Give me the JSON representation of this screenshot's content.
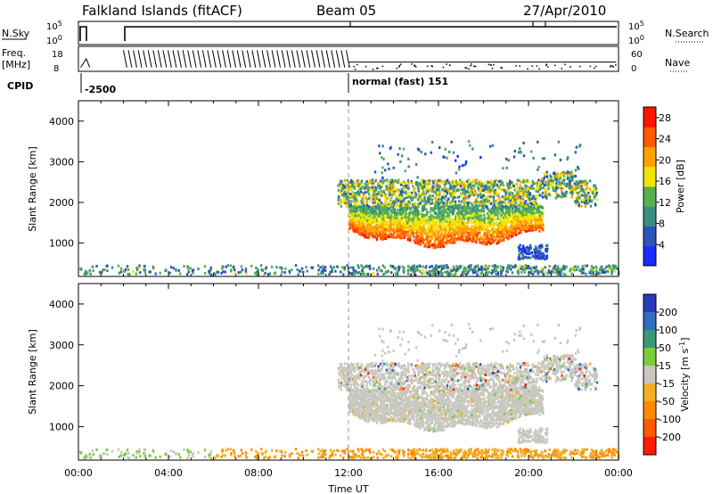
{
  "header": {
    "station": "Falkland Islands (fitACF)",
    "beam": "Beam 05",
    "date": "27/Apr/2010"
  },
  "summary": {
    "nsky_label": "N.Sky",
    "nsearch_label": "N.Search",
    "freq_label_1": "Freq.",
    "freq_label_2": "[MHz]",
    "nave_label": "Nave",
    "cpid_label": "CPID",
    "sky_ticks": [
      "10^5",
      "10^0"
    ],
    "search_ticks": [
      "10^5",
      "10^0"
    ],
    "freq_ticks": [
      "18",
      "8"
    ],
    "nave_ticks": [
      "60",
      "0"
    ],
    "cpid_segments": [
      {
        "start_hour": 0.25,
        "label": "-2500"
      },
      {
        "start_hour": 12.0,
        "label": "normal (fast) 151"
      }
    ]
  },
  "colors": {
    "power_scale": [
      "#1a2cff",
      "#2c55b8",
      "#3a8f7c",
      "#57b04f",
      "#f2e600",
      "#ffa000",
      "#ff5a00",
      "#ff1400"
    ],
    "velocity_scale": [
      "#2a3ab8",
      "#2e6fc0",
      "#3a9a78",
      "#7ccc3c",
      "#c8c8c0",
      "#f0b020",
      "#ff8a00",
      "#ff5a00",
      "#ff1a00"
    ],
    "dashed_line": "#999999"
  },
  "chart_data": [
    {
      "type": "heatmap",
      "title": "",
      "xlabel": "Time UT",
      "ylabel": "Slant Range [km]",
      "colorbar_label": "Power [dB]",
      "x_range_hours": [
        0,
        24
      ],
      "ylim": [
        180,
        4500
      ],
      "x_ticks": [
        "00:00",
        "04:00",
        "08:00",
        "12:00",
        "16:00",
        "20:00",
        "00:00"
      ],
      "y_ticks": [
        1000,
        2000,
        3000,
        4000
      ],
      "colorbar_ticks": [
        4,
        8,
        12,
        16,
        20,
        24,
        28
      ],
      "colorbar_range": [
        0,
        30
      ],
      "features": [
        {
          "name": "main echo band",
          "hours": [
            13.0,
            20.5
          ],
          "range_km": [
            1000,
            1900
          ],
          "power_db": 28
        },
        {
          "name": "upper patchy echoes",
          "hours": [
            12.0,
            22.0
          ],
          "range_km": [
            1900,
            2700
          ],
          "power_db": 12
        },
        {
          "name": "ground scatter strip",
          "hours": [
            0.0,
            24.0
          ],
          "range_km": [
            200,
            450
          ],
          "power_db": 6
        }
      ]
    },
    {
      "type": "heatmap",
      "title": "",
      "xlabel": "Time UT",
      "ylabel": "Slant Range [km]",
      "colorbar_label": "Velocity [m s^-1]",
      "x_range_hours": [
        0,
        24
      ],
      "ylim": [
        180,
        4500
      ],
      "x_ticks": [
        "00:00",
        "04:00",
        "08:00",
        "12:00",
        "16:00",
        "20:00",
        "00:00"
      ],
      "y_ticks": [
        1000,
        2000,
        3000,
        4000
      ],
      "colorbar_ticks": [
        200,
        100,
        50,
        15,
        -15,
        -50,
        -100,
        -200
      ],
      "features": [
        {
          "name": "low-velocity echo region",
          "hours": [
            12.0,
            22.5
          ],
          "range_km": [
            1000,
            2600
          ],
          "velocity": 0
        },
        {
          "name": "near-range scatter",
          "hours": [
            1.0,
            24.0
          ],
          "range_km": [
            200,
            450
          ],
          "velocity": -30
        }
      ]
    }
  ]
}
